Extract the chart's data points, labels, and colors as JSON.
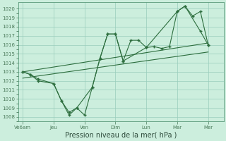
{
  "bg_color": "#cceedd",
  "grid_color": "#99ccbb",
  "line_color": "#2d6e3e",
  "xlabel": "Pression niveau de la mer( hPa )",
  "xlabel_fontsize": 7,
  "ylim": [
    1007.5,
    1020.7
  ],
  "yticks": [
    1008,
    1009,
    1010,
    1011,
    1012,
    1013,
    1014,
    1015,
    1016,
    1017,
    1018,
    1019,
    1020
  ],
  "xtick_labels": [
    "Ve6am",
    "Jeu",
    "Ven",
    "Dim",
    "Lun",
    "Mar",
    "Mer"
  ],
  "xtick_positions": [
    0,
    2,
    4,
    6,
    8,
    10,
    12
  ],
  "xlim": [
    -0.3,
    13.0
  ],
  "line1_x": [
    0,
    0.5,
    1.0,
    2.0,
    2.5,
    3.0,
    3.5,
    4.0,
    4.5,
    5.0,
    5.5,
    6.0,
    6.5,
    7.0,
    7.5,
    8.0,
    8.5,
    9.0,
    9.5,
    10.0,
    10.5,
    11.0,
    11.5,
    12.0
  ],
  "line1_y": [
    1013.0,
    1012.7,
    1012.2,
    1011.7,
    1009.8,
    1008.5,
    1009.0,
    1008.2,
    1011.3,
    1014.5,
    1017.2,
    1017.2,
    1014.2,
    1016.5,
    1016.5,
    1015.7,
    1015.8,
    1015.6,
    1015.8,
    1019.7,
    1020.3,
    1019.2,
    1019.7,
    1016.0
  ],
  "line2_x": [
    0,
    0.5,
    1.0,
    2.0,
    2.5,
    3.0,
    3.5,
    4.5,
    5.0,
    5.5,
    6.0,
    6.5,
    8.0,
    10.0,
    10.5,
    11.5,
    12.0
  ],
  "line2_y": [
    1013.0,
    1012.7,
    1012.0,
    1011.7,
    1009.8,
    1008.2,
    1009.0,
    1011.3,
    1014.5,
    1017.2,
    1017.2,
    1014.2,
    1015.7,
    1019.7,
    1020.3,
    1017.5,
    1016.0
  ],
  "trend1_x": [
    0,
    12
  ],
  "trend1_y": [
    1012.3,
    1015.2
  ],
  "trend2_x": [
    0,
    12
  ],
  "trend2_y": [
    1013.0,
    1016.2
  ]
}
